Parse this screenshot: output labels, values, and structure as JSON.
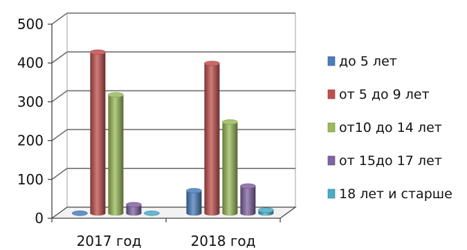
{
  "chart_data": {
    "type": "bar",
    "categories": [
      "2017 год",
      "2018 год"
    ],
    "series": [
      {
        "name": "до 5 лет",
        "values": [
          0,
          58
        ],
        "color": "#4a7ebb"
      },
      {
        "name": "от 5 до 9 лет",
        "values": [
          415,
          386
        ],
        "color": "#c0504d"
      },
      {
        "name": "от10 до 14 лет",
        "values": [
          305,
          235
        ],
        "color": "#9bbb59"
      },
      {
        "name": "от 15до 17 лет",
        "values": [
          22,
          70
        ],
        "color": "#8064a2"
      },
      {
        "name": "18 лет и старше",
        "values": [
          0,
          8
        ],
        "color": "#4bacc6"
      }
    ],
    "yticks": [
      "0",
      "100",
      "200",
      "300",
      "400",
      "500"
    ],
    "ylim": [
      0,
      500
    ],
    "grid": true,
    "legend": "right",
    "style": "3d-cylinder"
  }
}
